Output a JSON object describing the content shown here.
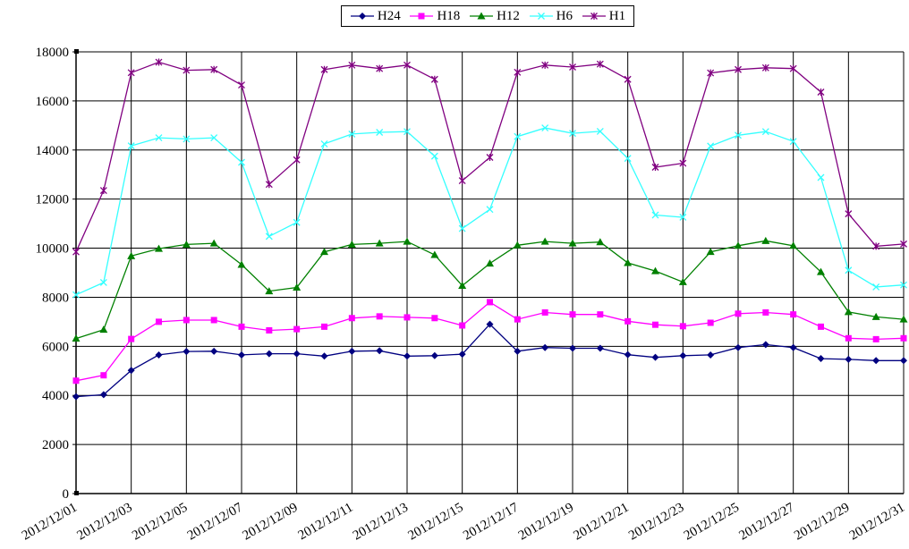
{
  "chart_data": {
    "type": "line",
    "title": "",
    "xlabel": "",
    "ylabel": "",
    "ylim": [
      0,
      18000
    ],
    "yticks": [
      0,
      2000,
      4000,
      6000,
      8000,
      10000,
      12000,
      14000,
      16000,
      18000
    ],
    "grid": true,
    "legend_position": "top-center",
    "categories": [
      "2012/12/01",
      "2012/12/02",
      "2012/12/03",
      "2012/12/04",
      "2012/12/05",
      "2012/12/06",
      "2012/12/07",
      "2012/12/08",
      "2012/12/09",
      "2012/12/10",
      "2012/12/11",
      "2012/12/12",
      "2012/12/13",
      "2012/12/14",
      "2012/12/15",
      "2012/12/16",
      "2012/12/17",
      "2012/12/18",
      "2012/12/19",
      "2012/12/20",
      "2012/12/21",
      "2012/12/22",
      "2012/12/23",
      "2012/12/24",
      "2012/12/25",
      "2012/12/26",
      "2012/12/27",
      "2012/12/28",
      "2012/12/29",
      "2012/12/30",
      "2012/12/31"
    ],
    "xtick_labels": [
      "2012/12/01",
      "2012/12/03",
      "2012/12/05",
      "2012/12/07",
      "2012/12/09",
      "2012/12/11",
      "2012/12/13",
      "2012/12/15",
      "2012/12/17",
      "2012/12/19",
      "2012/12/21",
      "2012/12/23",
      "2012/12/25",
      "2012/12/27",
      "2012/12/29",
      "2012/12/31"
    ],
    "series": [
      {
        "name": "H24",
        "color": "#000080",
        "marker": "diamond",
        "values": [
          3950,
          4030,
          5020,
          5650,
          5790,
          5800,
          5650,
          5700,
          5700,
          5600,
          5800,
          5820,
          5600,
          5620,
          5680,
          6900,
          5800,
          5950,
          5920,
          5920,
          5660,
          5550,
          5620,
          5650,
          5950,
          6070,
          5950,
          5500,
          5470,
          5420,
          5420
        ]
      },
      {
        "name": "H18",
        "color": "#FF00FF",
        "marker": "square",
        "values": [
          4600,
          4820,
          6300,
          7000,
          7070,
          7070,
          6800,
          6650,
          6700,
          6800,
          7150,
          7220,
          7180,
          7150,
          6850,
          7800,
          7100,
          7380,
          7300,
          7300,
          7020,
          6880,
          6820,
          6960,
          7330,
          7380,
          7300,
          6800,
          6330,
          6290,
          6330
        ]
      },
      {
        "name": "H12",
        "color": "#008000",
        "marker": "triangle",
        "values": [
          6320,
          6680,
          9680,
          9980,
          10150,
          10200,
          9330,
          8250,
          8400,
          9850,
          10150,
          10200,
          10270,
          9730,
          8470,
          9380,
          10120,
          10270,
          10200,
          10250,
          9400,
          9070,
          8620,
          9850,
          10100,
          10300,
          10100,
          9030,
          7400,
          7200,
          7100
        ]
      },
      {
        "name": "H6",
        "color": "#33FFFF",
        "marker": "x",
        "values": [
          8100,
          8600,
          14170,
          14500,
          14450,
          14500,
          13500,
          10480,
          11050,
          14250,
          14650,
          14720,
          14750,
          13750,
          10800,
          11580,
          14550,
          14900,
          14680,
          14760,
          13660,
          11350,
          11260,
          14160,
          14600,
          14750,
          14350,
          12880,
          9100,
          8420,
          8500
        ]
      },
      {
        "name": "H1",
        "color": "#800080",
        "marker": "star",
        "values": [
          9850,
          12350,
          17150,
          17580,
          17250,
          17280,
          16650,
          12600,
          13600,
          17280,
          17460,
          17320,
          17460,
          16880,
          12750,
          13700,
          17170,
          17460,
          17380,
          17500,
          16880,
          13300,
          13460,
          17140,
          17280,
          17350,
          17320,
          16360,
          11400,
          10080,
          10170
        ]
      }
    ]
  }
}
